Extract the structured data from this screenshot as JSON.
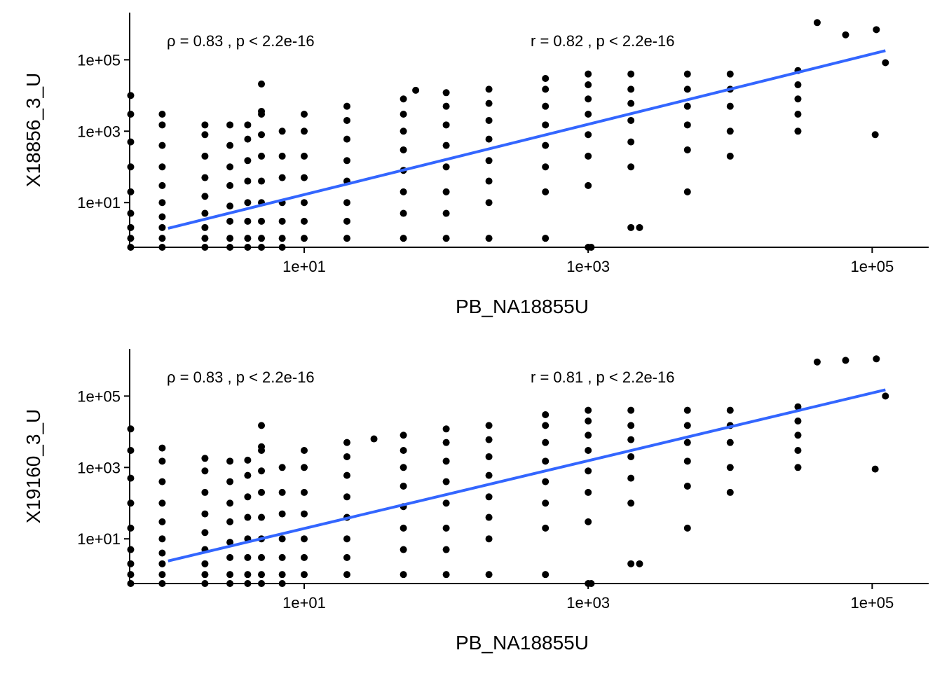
{
  "chart_data": [
    {
      "type": "scatter",
      "x_label": "PB_NA18855U",
      "y_label": "X18856_3_U",
      "annotations": [
        "ρ = 0.83 , p < 2.2e-16",
        "r = 0.82 , p < 2.2e-16"
      ],
      "log_x": true,
      "log_y": true,
      "xlim": [
        0.59,
        250000
      ],
      "ylim": [
        0.56,
        2100000
      ],
      "xticks": [
        {
          "value": 10,
          "label": "1e+01"
        },
        {
          "value": 1000,
          "label": "1e+03"
        },
        {
          "value": 100000,
          "label": "1e+05"
        }
      ],
      "yticks": [
        {
          "value": 10,
          "label": "1e+01"
        },
        {
          "value": 1000,
          "label": "1e+03"
        },
        {
          "value": 100000,
          "label": "1e+05"
        }
      ],
      "series": [
        {
          "marks": "points",
          "color": "#000000",
          "x": [
            0.6,
            0.6,
            0.6,
            0.6,
            0.6,
            0.6,
            0.6,
            0.6,
            0.6,
            1,
            1,
            1,
            1,
            1,
            1,
            1,
            1,
            1,
            1,
            2,
            2,
            2,
            2,
            2,
            2,
            2,
            2,
            2,
            3,
            3,
            3,
            3,
            3,
            3,
            3,
            3,
            4,
            4,
            4,
            4,
            4,
            4,
            4,
            4,
            5,
            5,
            5,
            5,
            5,
            5,
            5,
            5,
            5,
            5,
            7,
            7,
            7,
            7,
            7,
            7,
            7,
            10,
            10,
            10,
            10,
            10,
            10,
            10,
            20,
            20,
            20,
            20,
            20,
            20,
            20,
            20,
            50,
            50,
            50,
            50,
            50,
            50,
            50,
            50,
            100,
            100,
            100,
            100,
            100,
            100,
            100,
            100,
            200,
            200,
            200,
            200,
            200,
            200,
            200,
            200,
            500,
            500,
            500,
            500,
            500,
            500,
            500,
            500,
            1000,
            1000,
            1000,
            1000,
            1000,
            1000,
            1000,
            1000,
            2000,
            2000,
            2000,
            2000,
            2000,
            2000,
            2000,
            5000,
            5000,
            5000,
            5000,
            5000,
            5000,
            10000,
            10000,
            10000,
            10000,
            10000,
            30000,
            30000,
            30000,
            30000,
            30000,
            61,
            41000,
            65000,
            107000,
            124000,
            105000,
            1050,
            2300
          ],
          "values": [
            0.56,
            1,
            2,
            5,
            20,
            100,
            500,
            3000,
            10000,
            0.56,
            1,
            2,
            4,
            10,
            30,
            100,
            400,
            1500,
            3000,
            0.56,
            1,
            2,
            5,
            15,
            50,
            200,
            800,
            1500,
            0.56,
            1,
            3,
            8,
            30,
            100,
            400,
            1500,
            0.56,
            1,
            3,
            10,
            40,
            150,
            600,
            1500,
            0.56,
            1,
            3,
            10,
            40,
            200,
            800,
            3000,
            3600,
            21000,
            0.56,
            1,
            3,
            10,
            50,
            200,
            1000,
            1,
            3,
            10,
            50,
            200,
            1000,
            3000,
            1,
            3,
            10,
            40,
            150,
            600,
            2000,
            5000,
            1,
            5,
            20,
            80,
            300,
            1000,
            3000,
            8000,
            1,
            5,
            20,
            100,
            400,
            1500,
            5000,
            12000,
            1,
            10,
            40,
            150,
            600,
            2000,
            6000,
            15000,
            1,
            20,
            100,
            400,
            1500,
            5000,
            15000,
            30000,
            0.56,
            30,
            200,
            800,
            3000,
            8000,
            20000,
            40000,
            2,
            100,
            500,
            2000,
            6000,
            15000,
            40000,
            20,
            300,
            1500,
            5000,
            15000,
            40000,
            200,
            1000,
            5000,
            15000,
            40000,
            1000,
            3000,
            8000,
            20000,
            50000,
            14000,
            1100000,
            500000,
            700000,
            83000,
            800,
            0.56,
            2
          ]
        },
        {
          "marks": "line",
          "color": "#3366ff",
          "x": [
            1.1,
            124000
          ],
          "values": [
            1.9,
            180000
          ]
        }
      ]
    },
    {
      "type": "scatter",
      "x_label": "PB_NA18855U",
      "y_label": "X19160_3_U",
      "annotations": [
        "ρ = 0.83 , p < 2.2e-16",
        "r = 0.81 , p < 2.2e-16"
      ],
      "log_x": true,
      "log_y": true,
      "xlim": [
        0.59,
        250000
      ],
      "ylim": [
        0.56,
        2100000
      ],
      "xticks": [
        {
          "value": 10,
          "label": "1e+01"
        },
        {
          "value": 1000,
          "label": "1e+03"
        },
        {
          "value": 100000,
          "label": "1e+05"
        }
      ],
      "yticks": [
        {
          "value": 10,
          "label": "1e+01"
        },
        {
          "value": 1000,
          "label": "1e+03"
        },
        {
          "value": 100000,
          "label": "1e+05"
        }
      ],
      "series": [
        {
          "marks": "points",
          "color": "#000000",
          "x": [
            0.6,
            0.6,
            0.6,
            0.6,
            0.6,
            0.6,
            0.6,
            0.6,
            0.6,
            1,
            1,
            1,
            1,
            1,
            1,
            1,
            1,
            1,
            1,
            2,
            2,
            2,
            2,
            2,
            2,
            2,
            2,
            2,
            3,
            3,
            3,
            3,
            3,
            3,
            3,
            3,
            4,
            4,
            4,
            4,
            4,
            4,
            4,
            4,
            5,
            5,
            5,
            5,
            5,
            5,
            5,
            5,
            5,
            5,
            7,
            7,
            7,
            7,
            7,
            7,
            7,
            10,
            10,
            10,
            10,
            10,
            10,
            10,
            20,
            20,
            20,
            20,
            20,
            20,
            20,
            20,
            50,
            50,
            50,
            50,
            50,
            50,
            50,
            50,
            100,
            100,
            100,
            100,
            100,
            100,
            100,
            100,
            200,
            200,
            200,
            200,
            200,
            200,
            200,
            200,
            500,
            500,
            500,
            500,
            500,
            500,
            500,
            500,
            1000,
            1000,
            1000,
            1000,
            1000,
            1000,
            1000,
            1000,
            2000,
            2000,
            2000,
            2000,
            2000,
            2000,
            2000,
            5000,
            5000,
            5000,
            5000,
            5000,
            5000,
            10000,
            10000,
            10000,
            10000,
            10000,
            30000,
            30000,
            30000,
            30000,
            30000,
            31,
            41000,
            65000,
            107000,
            124000,
            105000,
            1050,
            2300
          ],
          "values": [
            0.56,
            1,
            2,
            5,
            20,
            100,
            500,
            3000,
            12000,
            0.56,
            1,
            2,
            4,
            10,
            30,
            100,
            400,
            1500,
            3500,
            0.56,
            1,
            2,
            5,
            15,
            50,
            200,
            800,
            1800,
            0.56,
            1,
            3,
            8,
            30,
            100,
            400,
            1500,
            0.56,
            1,
            3,
            10,
            40,
            150,
            600,
            1600,
            0.56,
            1,
            3,
            10,
            40,
            200,
            800,
            3000,
            3800,
            15000,
            0.56,
            1,
            3,
            10,
            50,
            200,
            1000,
            1,
            3,
            10,
            50,
            200,
            1000,
            3000,
            1,
            3,
            10,
            40,
            150,
            600,
            2000,
            5000,
            1,
            5,
            20,
            80,
            300,
            1000,
            3000,
            8000,
            1,
            5,
            20,
            100,
            400,
            1500,
            5000,
            12000,
            1,
            10,
            40,
            150,
            600,
            2000,
            6000,
            15000,
            1,
            20,
            100,
            400,
            1500,
            5000,
            15000,
            30000,
            0.56,
            30,
            200,
            800,
            3000,
            8000,
            20000,
            40000,
            2,
            100,
            500,
            2000,
            6000,
            15000,
            40000,
            20,
            300,
            1500,
            5000,
            15000,
            40000,
            200,
            1000,
            5000,
            15000,
            40000,
            1000,
            3000,
            8000,
            20000,
            50000,
            6300,
            900000,
            1000000,
            1100000,
            100000,
            900,
            0.56,
            2
          ]
        },
        {
          "marks": "line",
          "color": "#3366ff",
          "x": [
            1.1,
            124000
          ],
          "values": [
            2.4,
            150000
          ]
        }
      ]
    }
  ]
}
